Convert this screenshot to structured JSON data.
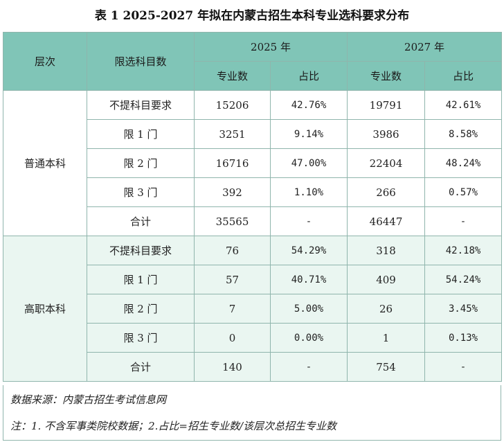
{
  "title": "表 1  2025-2027 年拟在内蒙古招生本科专业选科要求分布",
  "header": {
    "level": "层次",
    "subject_req": "限选科目数",
    "year_a": "2025 年",
    "year_b": "2027 年",
    "count": "专业数",
    "share": "占比"
  },
  "groups": [
    {
      "name": "普通本科",
      "rows": [
        {
          "label": "不提科目要求",
          "c25": "15206",
          "p25": "42.76%",
          "c27": "19791",
          "p27": "42.61%"
        },
        {
          "label": "限 1 门",
          "c25": "3251",
          "p25": "9.14%",
          "c27": "3986",
          "p27": "8.58%"
        },
        {
          "label": "限 2 门",
          "c25": "16716",
          "p25": "47.00%",
          "c27": "22404",
          "p27": "48.24%"
        },
        {
          "label": "限 3 门",
          "c25": "392",
          "p25": "1.10%",
          "c27": "266",
          "p27": "0.57%"
        },
        {
          "label": "合计",
          "c25": "35565",
          "p25": "-",
          "c27": "46447",
          "p27": "-"
        }
      ]
    },
    {
      "name": "高职本科",
      "rows": [
        {
          "label": "不提科目要求",
          "c25": "76",
          "p25": "54.29%",
          "c27": "318",
          "p27": "42.18%"
        },
        {
          "label": "限 1 门",
          "c25": "57",
          "p25": "40.71%",
          "c27": "409",
          "p27": "54.24%"
        },
        {
          "label": "限 2 门",
          "c25": "7",
          "p25": "5.00%",
          "c27": "26",
          "p27": "3.45%"
        },
        {
          "label": "限 3 门",
          "c25": "0",
          "p25": "0.00%",
          "c27": "1",
          "p27": "0.13%"
        },
        {
          "label": "合计",
          "c25": "140",
          "p25": "-",
          "c27": "754",
          "p27": "-"
        }
      ]
    }
  ],
  "source": "数据来源：内蒙古招生考试信息网",
  "note": "注：1.  不含军事类院校数据；2.占比=招生专业数/该层次总招生专业数",
  "colors": {
    "header_bg": "#80c5b7",
    "group2_bg": "#eaf6f1",
    "border": "#8fb5ac"
  }
}
